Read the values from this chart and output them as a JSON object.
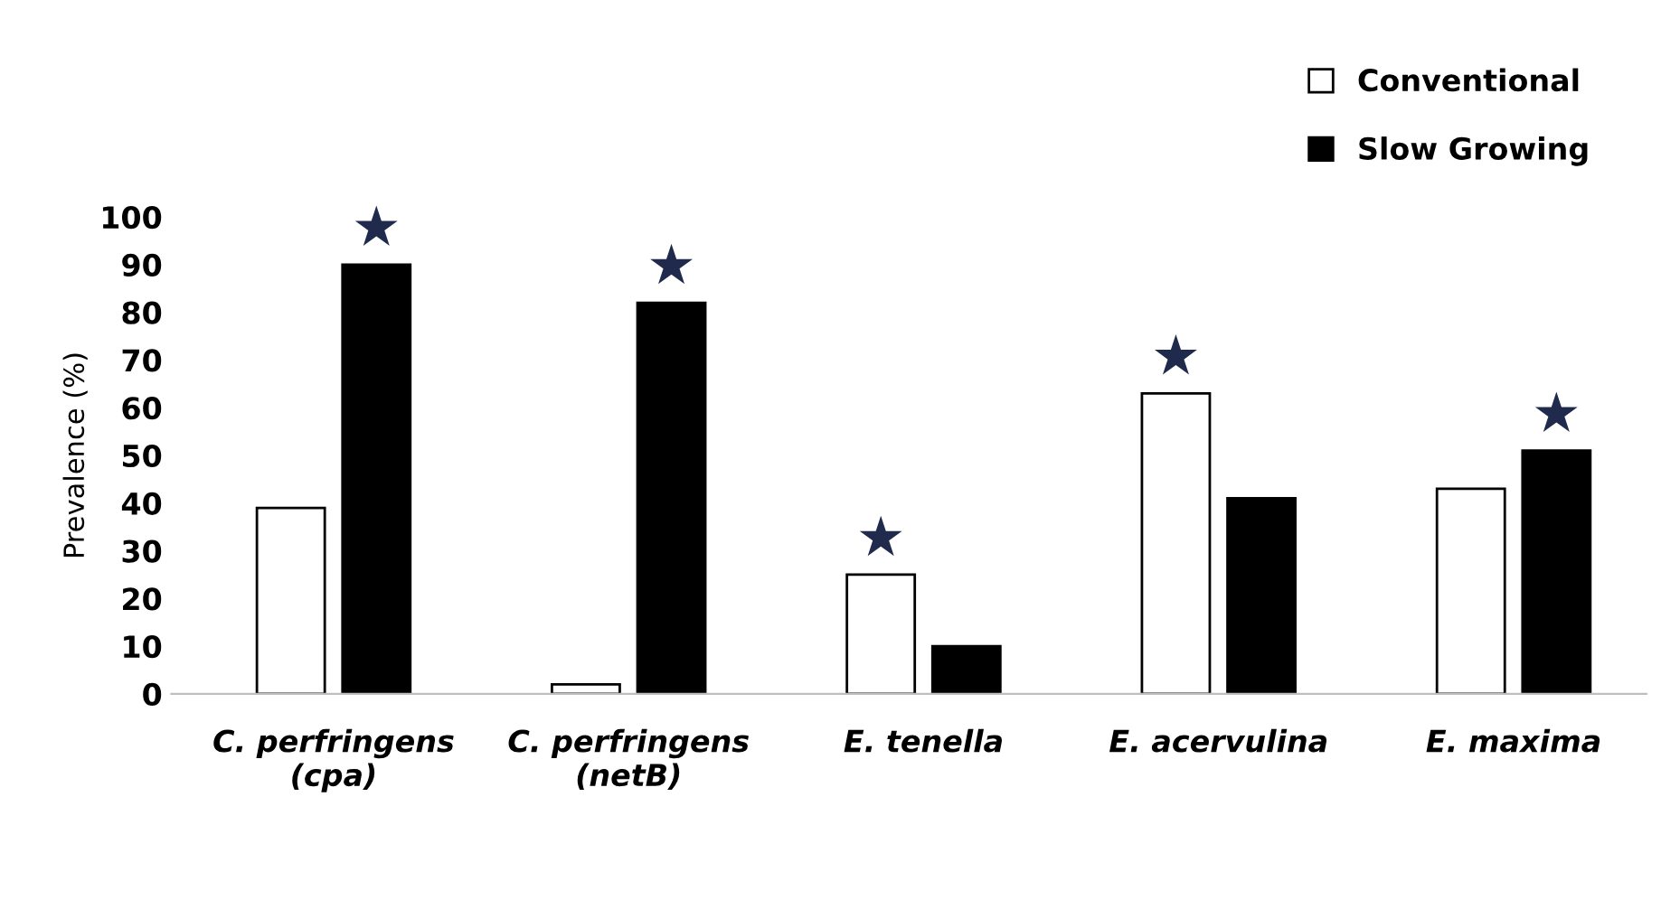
{
  "chart_data": {
    "type": "bar",
    "ylabel": "Prevalence (%)",
    "categories": [
      "C. perfringens\n(cpa)",
      "C. perfringens\n(netB)",
      "E. tenella",
      "E. acervulina",
      "E. maxima"
    ],
    "series": [
      {
        "name": "Conventional",
        "color": "#ffffff",
        "values": [
          39,
          2,
          25,
          63,
          43
        ]
      },
      {
        "name": "Slow Growing",
        "color": "#000000",
        "values": [
          90,
          82,
          10,
          41,
          51
        ]
      }
    ],
    "ylim": [
      0,
      100
    ],
    "yticks": [
      0,
      10,
      20,
      30,
      40,
      50,
      60,
      70,
      80,
      90,
      100
    ],
    "grid": false,
    "legend": "top right",
    "annotations": [
      "★",
      "★",
      "★",
      "★",
      "★"
    ]
  }
}
